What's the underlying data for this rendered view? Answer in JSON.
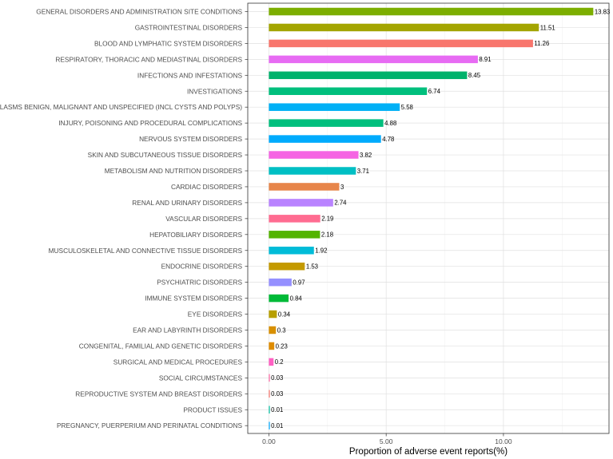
{
  "chart_data": {
    "type": "bar",
    "orientation": "horizontal",
    "xlabel": "Proportion of adverse event reports(%)",
    "ylabel": "",
    "xlim": [
      -0.9,
      14.5
    ],
    "xticks": [
      0,
      5,
      10
    ],
    "xtick_labels": [
      "0.00",
      "5.00",
      "10.00"
    ],
    "grid": true,
    "legend": "none",
    "categories": [
      "GENERAL DISORDERS AND ADMINISTRATION SITE CONDITIONS",
      "GASTROINTESTINAL DISORDERS",
      "BLOOD AND LYMPHATIC SYSTEM DISORDERS",
      "RESPIRATORY, THORACIC AND MEDIASTINAL DISORDERS",
      "INFECTIONS AND INFESTATIONS",
      "INVESTIGATIONS",
      "NEOPLASMS BENIGN, MALIGNANT AND UNSPECIFIED (INCL CYSTS AND POLYPS)",
      "INJURY, POISONING AND PROCEDURAL COMPLICATIONS",
      "NERVOUS SYSTEM DISORDERS",
      "SKIN AND SUBCUTANEOUS TISSUE DISORDERS",
      "METABOLISM AND NUTRITION DISORDERS",
      "CARDIAC DISORDERS",
      "RENAL AND URINARY DISORDERS",
      "VASCULAR DISORDERS",
      "HEPATOBILIARY DISORDERS",
      "MUSCULOSKELETAL AND CONNECTIVE TISSUE DISORDERS",
      "ENDOCRINE DISORDERS",
      "PSYCHIATRIC DISORDERS",
      "IMMUNE SYSTEM DISORDERS",
      "EYE DISORDERS",
      "EAR AND LABYRINTH DISORDERS",
      "CONGENITAL, FAMILIAL AND GENETIC DISORDERS",
      "SURGICAL AND MEDICAL PROCEDURES",
      "SOCIAL CIRCUMSTANCES",
      "REPRODUCTIVE SYSTEM AND BREAST DISORDERS",
      "PRODUCT ISSUES",
      "PREGNANCY, PUERPERIUM AND PERINATAL CONDITIONS"
    ],
    "values": [
      13.83,
      11.51,
      11.26,
      8.91,
      8.45,
      6.74,
      5.58,
      4.88,
      4.78,
      3.82,
      3.71,
      3,
      2.74,
      2.19,
      2.18,
      1.92,
      1.53,
      0.97,
      0.84,
      0.34,
      0.3,
      0.23,
      0.2,
      0.03,
      0.03,
      0.01,
      0.01
    ],
    "value_labels": [
      "13.83",
      "11.51",
      "11.26",
      "8.91",
      "8.45",
      "6.74",
      "5.58",
      "4.88",
      "4.78",
      "3.82",
      "3.71",
      "3",
      "2.74",
      "2.19",
      "2.18",
      "1.92",
      "1.53",
      "0.97",
      "0.84",
      "0.34",
      "0.3",
      "0.23",
      "0.2",
      "0.03",
      "0.03",
      "0.01",
      "0.01"
    ],
    "colors": [
      "#7CAE00",
      "#A3A500",
      "#F8766D",
      "#E76BF3",
      "#00B26C",
      "#00BF7D",
      "#00B0F6",
      "#00BF7D",
      "#00ABFD",
      "#F564E3",
      "#00BFC4",
      "#E7854A",
      "#B983FF",
      "#FF6C91",
      "#53B400",
      "#00BCD8",
      "#C49A00",
      "#9590FF",
      "#00BA38",
      "#B79F00",
      "#D89000",
      "#DE8C00",
      "#FF61C3",
      "#FF67A4",
      "#F8766D",
      "#00C1A3",
      "#00A9FF"
    ]
  }
}
